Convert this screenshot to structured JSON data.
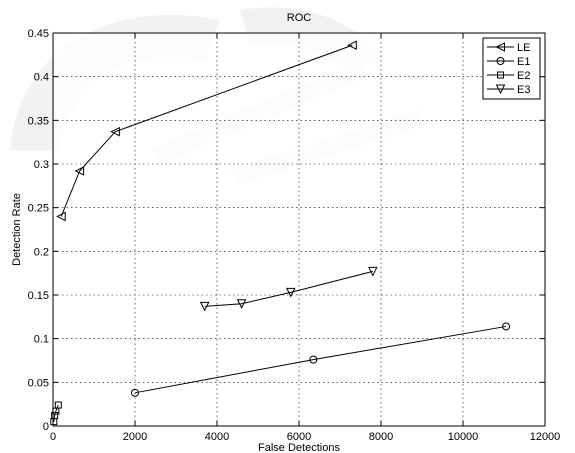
{
  "chart_data": {
    "type": "line",
    "title": "ROC",
    "xlabel": "False Detections",
    "ylabel": "Detection Rate",
    "xlim": [
      0,
      12000
    ],
    "ylim": [
      0,
      0.45
    ],
    "xticks": [
      0,
      2000,
      4000,
      6000,
      8000,
      10000,
      12000
    ],
    "xtick_labels": [
      "0",
      "2000",
      "4000",
      "6000",
      "8000",
      "10000",
      "12000"
    ],
    "yticks": [
      0,
      0.05,
      0.1,
      0.15,
      0.2,
      0.25,
      0.3,
      0.35,
      0.4,
      0.45
    ],
    "ytick_labels": [
      "0",
      "0.05",
      "0.1",
      "0.15",
      "0.2",
      "0.25",
      "0.3",
      "0.35",
      "0.4",
      "0.45"
    ],
    "grid": true,
    "legend_position": "top-right",
    "series": [
      {
        "name": "LE",
        "marker": "triangle-left",
        "x": [
          200,
          650,
          1520,
          7300
        ],
        "y": [
          0.24,
          0.292,
          0.337,
          0.436
        ]
      },
      {
        "name": "E1",
        "marker": "circle",
        "x": [
          2000,
          6350,
          11050
        ],
        "y": [
          0.038,
          0.076,
          0.114
        ]
      },
      {
        "name": "E2",
        "marker": "square",
        "x": [
          20,
          40,
          70,
          130
        ],
        "y": [
          0.005,
          0.012,
          0.017,
          0.024
        ]
      },
      {
        "name": "E3",
        "marker": "triangle-down",
        "x": [
          3700,
          4600,
          5800,
          7800
        ],
        "y": [
          0.137,
          0.14,
          0.153,
          0.177
        ]
      }
    ]
  }
}
